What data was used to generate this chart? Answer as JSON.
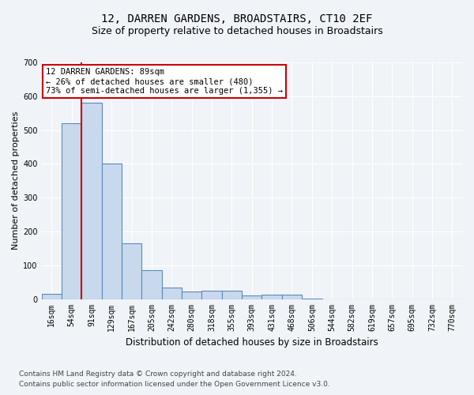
{
  "title": "12, DARREN GARDENS, BROADSTAIRS, CT10 2EF",
  "subtitle": "Size of property relative to detached houses in Broadstairs",
  "xlabel": "Distribution of detached houses by size in Broadstairs",
  "ylabel": "Number of detached properties",
  "bin_labels": [
    "16sqm",
    "54sqm",
    "91sqm",
    "129sqm",
    "167sqm",
    "205sqm",
    "242sqm",
    "280sqm",
    "318sqm",
    "355sqm",
    "393sqm",
    "431sqm",
    "468sqm",
    "506sqm",
    "544sqm",
    "582sqm",
    "619sqm",
    "657sqm",
    "695sqm",
    "732sqm",
    "770sqm"
  ],
  "bar_heights": [
    15,
    520,
    580,
    400,
    165,
    85,
    35,
    22,
    25,
    25,
    10,
    13,
    12,
    2,
    0,
    0,
    0,
    0,
    0,
    0,
    0
  ],
  "bar_color": "#c9d9ed",
  "bar_edge_color": "#5a8abf",
  "bar_edge_width": 0.8,
  "property_line_color": "#cc0000",
  "annotation_line1": "12 DARREN GARDENS: 89sqm",
  "annotation_line2": "← 26% of detached houses are smaller (480)",
  "annotation_line3": "73% of semi-detached houses are larger (1,355) →",
  "annotation_box_color": "#cc0000",
  "ylim": [
    0,
    700
  ],
  "yticks": [
    0,
    100,
    200,
    300,
    400,
    500,
    600,
    700
  ],
  "footer1": "Contains HM Land Registry data © Crown copyright and database right 2024.",
  "footer2": "Contains public sector information licensed under the Open Government Licence v3.0.",
  "background_color": "#f0f4f8",
  "grid_color": "#ffffff",
  "title_fontsize": 10,
  "subtitle_fontsize": 9,
  "xlabel_fontsize": 8.5,
  "ylabel_fontsize": 8,
  "tick_fontsize": 7,
  "footer_fontsize": 6.5,
  "annotation_fontsize": 7.5
}
